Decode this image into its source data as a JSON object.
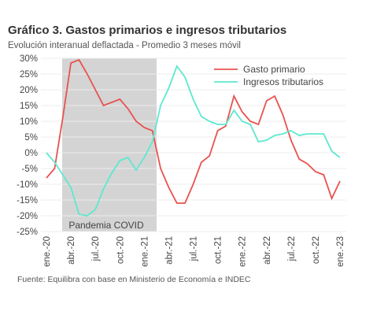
{
  "chart_data": {
    "type": "line",
    "title": "Gráfico 3. Gastos primarios e ingresos tributarios",
    "subtitle": "Evolución interanual deflactada - Promedio 3 meses móvil",
    "source": "Fuente: Equilibra con base en Ministerio de Economía e INDEC",
    "annotation": "Pandemia COVID",
    "categories": [
      "ene.-20",
      null,
      null,
      "abr.-20",
      null,
      null,
      "jul.-20",
      null,
      null,
      "oct.-20",
      null,
      null,
      "ene.-21",
      null,
      null,
      "abr.-21",
      null,
      null,
      "jul.-21",
      null,
      null,
      "oct.-21",
      null,
      null,
      "ene.-22",
      null,
      null,
      "abr.-22",
      null,
      null,
      "jul.-22",
      null,
      null,
      "oct.-22",
      null,
      null,
      "ene.-23"
    ],
    "series": [
      {
        "name": "Gasto primario",
        "color": "#e8524f",
        "values": [
          -8,
          -5,
          11,
          28.5,
          29.5,
          25,
          20,
          15,
          16,
          17,
          14,
          10,
          8,
          7,
          -5,
          -11,
          -16,
          -16,
          -10,
          -3,
          -1,
          7,
          8.5,
          18,
          13,
          10,
          9,
          16.5,
          18,
          12,
          4,
          -2,
          -3.5,
          -6,
          -7,
          -14.5,
          -9
        ]
      },
      {
        "name": "Ingresos tributarios",
        "color": "#5ee8cf",
        "values": [
          0,
          -3,
          -7,
          -11,
          -19.5,
          -20,
          -18,
          -11.5,
          -6.5,
          -2.5,
          -1.5,
          -5.5,
          -1.5,
          3.5,
          15,
          20.5,
          27.5,
          24,
          17,
          11.5,
          10,
          9,
          9,
          13.5,
          10,
          9,
          3.5,
          4,
          5.5,
          6,
          7,
          5.5,
          6,
          6,
          6,
          0.5,
          -1.5
        ]
      }
    ],
    "ylim": [
      -25,
      30
    ],
    "yticks": [
      {
        "value": 30,
        "label": "30%"
      },
      {
        "value": 25,
        "label": "25%"
      },
      {
        "value": 20,
        "label": "20%"
      },
      {
        "value": 15,
        "label": "15%"
      },
      {
        "value": 10,
        "label": "10%"
      },
      {
        "value": 5,
        "label": "5%"
      },
      {
        "value": 0,
        "label": "0%"
      },
      {
        "value": -5,
        "label": "-5%"
      },
      {
        "value": -10,
        "label": "-10%"
      },
      {
        "value": -15,
        "label": "-15%"
      },
      {
        "value": -20,
        "label": "-20%"
      },
      {
        "value": -25,
        "label": "-25%"
      }
    ],
    "grid": true
  }
}
